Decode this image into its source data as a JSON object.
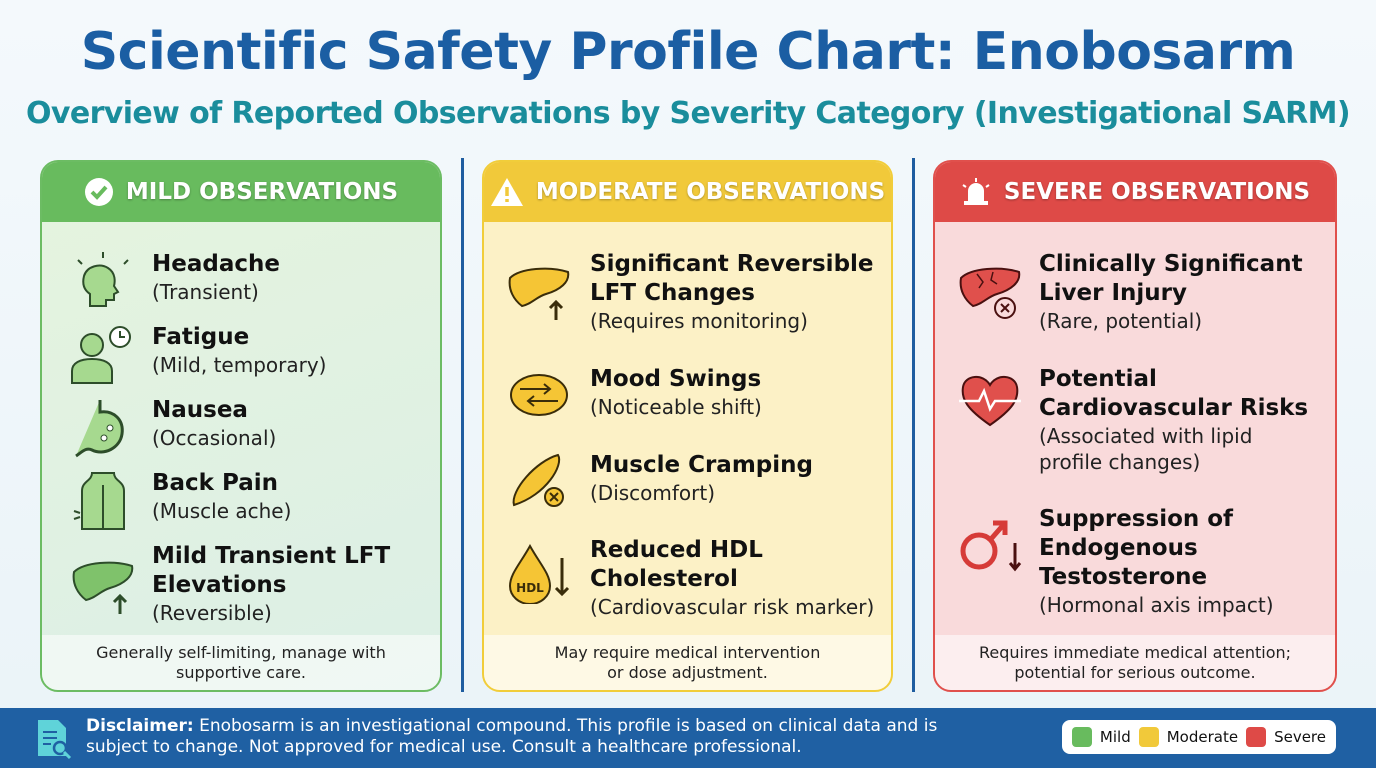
{
  "title": "Scientific Safety Profile Chart: Enobosarm",
  "subtitle": "Overview of Reported Observations by Severity Category (Investigational SARM)",
  "colors": {
    "mild": "#68bb5e",
    "moderate": "#f1c93a",
    "severe": "#de4a47",
    "brand": "#1b5ea3"
  },
  "mild": {
    "header": "MILD OBSERVATIONS",
    "icon": "check-circle-icon",
    "items": [
      {
        "title": "Headache",
        "sub": "(Transient)",
        "icon": "headache-icon"
      },
      {
        "title": "Fatigue",
        "sub": "(Mild, temporary)",
        "icon": "fatigue-person-clock-icon"
      },
      {
        "title": "Nausea",
        "sub": "(Occasional)",
        "icon": "stomach-icon"
      },
      {
        "title": "Back Pain",
        "sub": "(Muscle ache)",
        "icon": "back-icon"
      },
      {
        "title": "Mild Transient LFT Elevations",
        "sub": "(Reversible)",
        "icon": "liver-up-icon"
      }
    ],
    "footer": "Generally self-limiting, manage with supportive care."
  },
  "moderate": {
    "header": "MODERATE OBSERVATIONS",
    "icon": "warning-icon",
    "items": [
      {
        "title": "Significant Reversible LFT Changes",
        "sub": "(Requires monitoring)",
        "icon": "liver-up-icon"
      },
      {
        "title": "Mood Swings",
        "sub": "(Noticeable shift)",
        "icon": "brain-arrows-icon"
      },
      {
        "title": "Muscle Cramping",
        "sub": "(Discomfort)",
        "icon": "muscle-icon"
      },
      {
        "title": "Reduced HDL Cholesterol",
        "sub": "(Cardiovascular risk marker)",
        "icon": "hdl-drop-icon",
        "icon_label": "HDL"
      }
    ],
    "footer": "May require medical intervention or dose adjustment."
  },
  "severe": {
    "header": "SEVERE OBSERVATIONS",
    "icon": "alarm-icon",
    "items": [
      {
        "title": "Clinically Significant Liver Injury",
        "sub": "(Rare, potential)",
        "icon": "damaged-liver-icon"
      },
      {
        "title": "Potential Cardiovascular Risks",
        "sub": "(Associated with lipid profile changes)",
        "icon": "heart-pulse-icon"
      },
      {
        "title": "Suppression of Endogenous Testosterone",
        "sub": "(Hormonal axis impact)",
        "icon": "male-symbol-down-icon"
      }
    ],
    "footer": "Requires immediate medical attention; potential for serious outcome."
  },
  "disclaimer": {
    "label": "Disclaimer:",
    "text": "Enobosarm is an investigational compound. This profile is based on clinical data and is subject to change. Not approved for medical use. Consult a healthcare professional."
  },
  "legend": [
    "Mild",
    "Moderate",
    "Severe"
  ]
}
